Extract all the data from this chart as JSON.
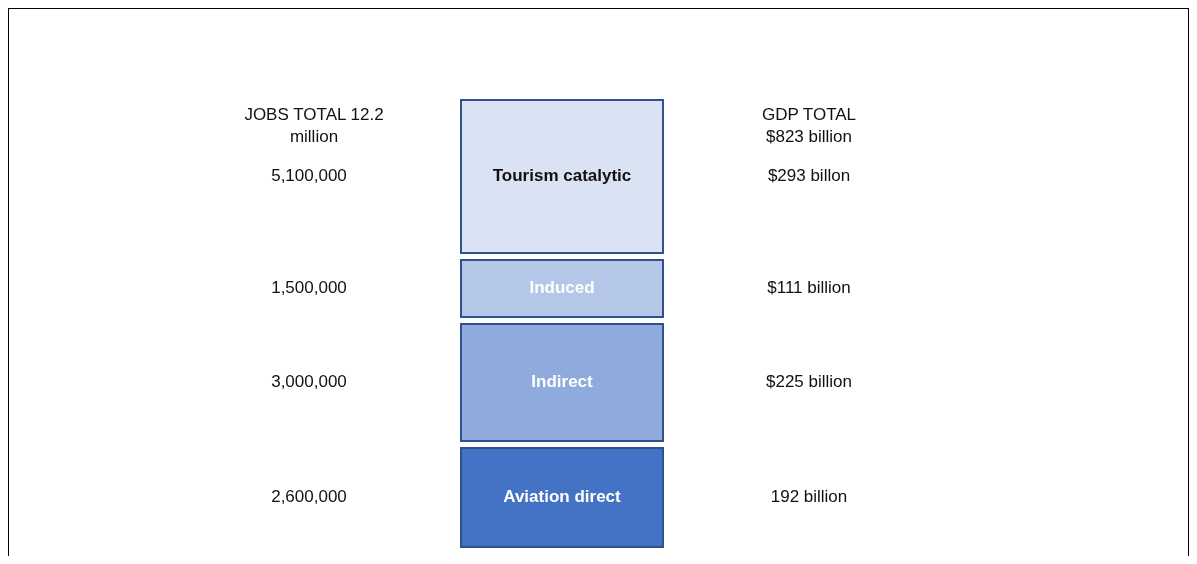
{
  "chart_data": {
    "type": "other",
    "categories": [
      "Tourism catalytic",
      "Induced",
      "Indirect",
      "Aviation direct"
    ],
    "colors": [
      "#dae3f3",
      "#b4c7e7",
      "#8faadc",
      "#4472c4"
    ],
    "values": [
      293,
      111,
      225,
      192
    ],
    "value_labels": [
      "$293 billon",
      "$111 billion",
      "$225 billion",
      "192 billion"
    ],
    "annotations": [
      "JOBS TOTAL 12.2 million",
      "GDP TOTAL $823 billion",
      "5,100,000",
      "1,500,000",
      "3,000,000",
      "2,600,000"
    ]
  }
}
